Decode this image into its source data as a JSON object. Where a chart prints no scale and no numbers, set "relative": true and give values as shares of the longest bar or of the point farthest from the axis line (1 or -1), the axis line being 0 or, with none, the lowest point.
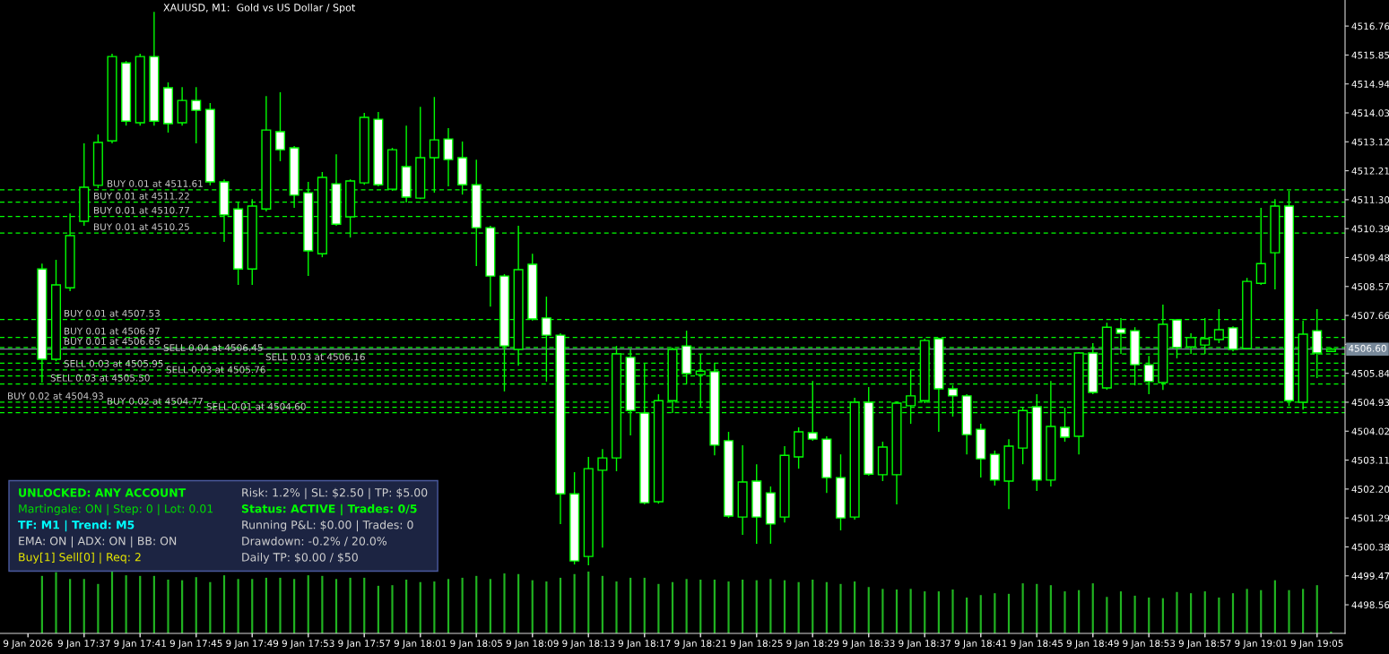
{
  "chart_data": [
    {
      "type": "candlestick",
      "title": "XAUUSD, M1:  Gold vs US Dollar / Spot",
      "tick_labels": "y",
      "x": [
        "2026-01-09T17:34",
        "2026-01-09T17:35",
        "2026-01-09T17:36",
        "2026-01-09T17:37",
        "2026-01-09T17:38",
        "2026-01-09T17:39",
        "2026-01-09T17:40",
        "2026-01-09T17:41",
        "2026-01-09T17:42",
        "2026-01-09T17:43",
        "2026-01-09T17:44",
        "2026-01-09T17:45",
        "2026-01-09T17:46",
        "2026-01-09T17:47",
        "2026-01-09T17:48",
        "2026-01-09T17:49",
        "2026-01-09T17:50",
        "2026-01-09T17:51",
        "2026-01-09T17:52",
        "2026-01-09T17:53",
        "2026-01-09T17:54",
        "2026-01-09T17:55",
        "2026-01-09T17:56",
        "2026-01-09T17:57",
        "2026-01-09T17:58",
        "2026-01-09T17:59",
        "2026-01-09T18:00",
        "2026-01-09T18:01",
        "2026-01-09T18:02",
        "2026-01-09T18:03",
        "2026-01-09T18:04",
        "2026-01-09T18:05",
        "2026-01-09T18:06",
        "2026-01-09T18:07",
        "2026-01-09T18:08",
        "2026-01-09T18:09",
        "2026-01-09T18:10",
        "2026-01-09T18:11",
        "2026-01-09T18:12",
        "2026-01-09T18:13",
        "2026-01-09T18:14",
        "2026-01-09T18:15",
        "2026-01-09T18:16",
        "2026-01-09T18:17",
        "2026-01-09T18:18",
        "2026-01-09T18:19",
        "2026-01-09T18:20",
        "2026-01-09T18:21",
        "2026-01-09T18:22",
        "2026-01-09T18:23",
        "2026-01-09T18:24",
        "2026-01-09T18:25",
        "2026-01-09T18:26",
        "2026-01-09T18:27",
        "2026-01-09T18:28",
        "2026-01-09T18:29",
        "2026-01-09T18:30",
        "2026-01-09T18:31",
        "2026-01-09T18:32",
        "2026-01-09T18:33",
        "2026-01-09T18:34",
        "2026-01-09T18:35",
        "2026-01-09T18:36",
        "2026-01-09T18:37",
        "2026-01-09T18:38",
        "2026-01-09T18:39",
        "2026-01-09T18:40",
        "2026-01-09T18:41",
        "2026-01-09T18:42",
        "2026-01-09T18:43",
        "2026-01-09T18:44",
        "2026-01-09T18:45",
        "2026-01-09T18:46",
        "2026-01-09T18:47",
        "2026-01-09T18:48",
        "2026-01-09T18:49",
        "2026-01-09T18:50",
        "2026-01-09T18:51",
        "2026-01-09T18:52",
        "2026-01-09T18:53",
        "2026-01-09T18:54",
        "2026-01-09T18:55",
        "2026-01-09T18:56",
        "2026-01-09T18:57",
        "2026-01-09T18:58",
        "2026-01-09T18:59",
        "2026-01-09T19:00",
        "2026-01-09T19:01",
        "2026-01-09T19:02",
        "2026-01-09T19:03",
        "2026-01-09T19:04",
        "2026-01-09T19:05",
        "2026-01-09T19:06"
      ],
      "ohlc": [
        [
          4509.12,
          4509.29,
          4505.55,
          4506.28
        ],
        [
          4506.28,
          4509.41,
          4506.22,
          4508.62
        ],
        [
          4508.53,
          4510.87,
          4508.42,
          4510.17
        ],
        [
          4510.62,
          4513.07,
          4510.48,
          4511.69
        ],
        [
          4511.75,
          4513.35,
          4511.66,
          4513.1
        ],
        [
          4513.15,
          4515.89,
          4513.07,
          4515.8
        ],
        [
          4515.6,
          4515.66,
          4513.63,
          4513.77
        ],
        [
          4513.72,
          4515.89,
          4513.63,
          4515.8
        ],
        [
          4515.8,
          4517.21,
          4513.63,
          4513.77
        ],
        [
          4514.82,
          4514.99,
          4513.41,
          4513.69
        ],
        [
          4513.72,
          4514.84,
          4513.63,
          4514.42
        ],
        [
          4514.42,
          4514.84,
          4513.07,
          4514.11
        ],
        [
          4514.14,
          4514.34,
          4511.75,
          4511.86
        ],
        [
          4511.86,
          4511.94,
          4509.97,
          4510.82
        ],
        [
          4511.01,
          4511.24,
          4508.62,
          4509.12
        ],
        [
          4509.12,
          4511.32,
          4508.62,
          4511.1
        ],
        [
          4511.01,
          4514.56,
          4510.93,
          4513.49
        ],
        [
          4513.44,
          4514.68,
          4512.51,
          4512.87
        ],
        [
          4512.93,
          4512.99,
          4511.04,
          4511.44
        ],
        [
          4511.52,
          4511.86,
          4508.9,
          4509.69
        ],
        [
          4509.6,
          4512.17,
          4509.49,
          4512.0
        ],
        [
          4511.8,
          4512.73,
          4510.48,
          4510.53
        ],
        [
          4510.76,
          4511.94,
          4510.11,
          4511.89
        ],
        [
          4511.83,
          4514.03,
          4511.77,
          4513.89
        ],
        [
          4513.83,
          4514.06,
          4511.72,
          4511.77
        ],
        [
          4511.63,
          4512.93,
          4511.58,
          4512.87
        ],
        [
          4512.34,
          4513.63,
          4511.21,
          4511.38
        ],
        [
          4511.35,
          4514.22,
          4511.32,
          4512.62
        ],
        [
          4512.62,
          4514.53,
          4511.52,
          4513.18
        ],
        [
          4513.21,
          4513.55,
          4511.72,
          4512.56
        ],
        [
          4512.62,
          4513.13,
          4511.46,
          4511.77
        ],
        [
          4511.77,
          4512.56,
          4509.21,
          4510.42
        ],
        [
          4510.42,
          4510.48,
          4507.94,
          4508.9
        ],
        [
          4508.9,
          4508.96,
          4505.27,
          4506.7
        ],
        [
          4506.59,
          4510.48,
          4506.08,
          4509.1
        ],
        [
          4509.27,
          4509.6,
          4507.49,
          4507.55
        ],
        [
          4507.58,
          4508.25,
          4505.58,
          4507.04
        ],
        [
          4507.04,
          4507.1,
          4501.1,
          4502.05
        ],
        [
          4502.05,
          4502.73,
          4499.83,
          4499.94
        ],
        [
          4500.08,
          4503.21,
          4499.8,
          4502.84
        ],
        [
          4502.79,
          4503.46,
          4500.36,
          4503.18
        ],
        [
          4503.18,
          4506.7,
          4502.76,
          4506.45
        ],
        [
          4506.34,
          4506.59,
          4503.89,
          4504.67
        ],
        [
          4504.59,
          4506.14,
          4501.72,
          4501.77
        ],
        [
          4501.8,
          4505.18,
          4501.74,
          4504.98
        ],
        [
          4504.98,
          4506.65,
          4504.59,
          4506.59
        ],
        [
          4506.7,
          4507.18,
          4505.52,
          4505.83
        ],
        [
          4505.8,
          4506.45,
          4504.76,
          4505.91
        ],
        [
          4505.89,
          4506.17,
          4503.26,
          4503.58
        ],
        [
          4503.72,
          4504.0,
          4501.29,
          4501.35
        ],
        [
          4501.32,
          4503.58,
          4500.76,
          4502.42
        ],
        [
          4502.45,
          4502.98,
          4500.48,
          4501.32
        ],
        [
          4502.08,
          4502.28,
          4500.48,
          4501.1
        ],
        [
          4501.32,
          4503.55,
          4501.15,
          4503.26
        ],
        [
          4503.21,
          4504.14,
          4502.84,
          4504.0
        ],
        [
          4503.97,
          4505.6,
          4503.72,
          4503.77
        ],
        [
          4503.77,
          4503.86,
          4502.08,
          4502.56
        ],
        [
          4502.56,
          4503.29,
          4500.9,
          4501.29
        ],
        [
          4501.32,
          4505.07,
          4501.24,
          4504.93
        ],
        [
          4504.93,
          4505.41,
          4502.62,
          4502.67
        ],
        [
          4502.65,
          4503.69,
          4502.45,
          4503.52
        ],
        [
          4502.65,
          4504.96,
          4501.72,
          4504.9
        ],
        [
          4504.82,
          4505.94,
          4504.25,
          4505.13
        ],
        [
          4504.98,
          4506.93,
          4504.9,
          4506.87
        ],
        [
          4506.93,
          4506.96,
          4504.0,
          4505.35
        ],
        [
          4505.35,
          4505.46,
          4504.48,
          4505.13
        ],
        [
          4505.13,
          4505.18,
          4503.29,
          4503.91
        ],
        [
          4504.08,
          4504.25,
          4502.56,
          4503.15
        ],
        [
          4503.29,
          4503.41,
          4502.31,
          4502.48
        ],
        [
          4502.45,
          4503.77,
          4501.57,
          4503.55
        ],
        [
          4503.49,
          4504.76,
          4502.98,
          4504.67
        ],
        [
          4504.79,
          4505.18,
          4502.14,
          4502.48
        ],
        [
          4502.48,
          4505.6,
          4502.28,
          4504.17
        ],
        [
          4504.14,
          4504.76,
          4503.69,
          4503.83
        ],
        [
          4503.86,
          4506.51,
          4503.29,
          4506.48
        ],
        [
          4506.48,
          4506.79,
          4505.18,
          4505.24
        ],
        [
          4505.38,
          4507.43,
          4505.32,
          4507.29
        ],
        [
          4507.24,
          4507.58,
          4506.45,
          4507.1
        ],
        [
          4507.18,
          4507.29,
          4505.46,
          4506.11
        ],
        [
          4506.11,
          4506.39,
          4505.18,
          4505.58
        ],
        [
          4505.55,
          4508.0,
          4505.32,
          4507.38
        ],
        [
          4507.52,
          4507.55,
          4506.31,
          4506.65
        ],
        [
          4506.67,
          4507.1,
          4506.45,
          4506.96
        ],
        [
          4506.73,
          4507.58,
          4506.45,
          4506.93
        ],
        [
          4506.9,
          4507.86,
          4506.79,
          4507.21
        ],
        [
          4507.27,
          4507.32,
          4506.53,
          4506.59
        ],
        [
          4506.62,
          4508.84,
          4506.59,
          4508.73
        ],
        [
          4508.67,
          4511.04,
          4508.62,
          4509.29
        ],
        [
          4509.63,
          4511.32,
          4508.48,
          4511.1
        ],
        [
          4511.1,
          4511.58,
          4504.81,
          4504.98
        ],
        [
          4504.93,
          4507.49,
          4504.7,
          4507.07
        ],
        [
          4507.18,
          4507.86,
          4505.69,
          4506.48
        ],
        [
          4506.53,
          4506.65,
          4506.51,
          4506.6
        ]
      ],
      "color": "#00ff00",
      "colors": [
        "#ffffff",
        "#000000",
        "#000000",
        "#000000",
        "#000000",
        "#000000",
        "#ffffff",
        "#000000",
        "#ffffff",
        "#ffffff",
        "#000000",
        "#ffffff",
        "#ffffff",
        "#ffffff",
        "#ffffff",
        "#000000",
        "#000000",
        "#ffffff",
        "#ffffff",
        "#ffffff",
        "#000000",
        "#ffffff",
        "#000000",
        "#000000",
        "#ffffff",
        "#000000",
        "#ffffff",
        "#000000",
        "#000000",
        "#ffffff",
        "#ffffff",
        "#ffffff",
        "#ffffff",
        "#ffffff",
        "#000000",
        "#ffffff",
        "#ffffff",
        "#ffffff",
        "#ffffff",
        "#000000",
        "#000000",
        "#000000",
        "#ffffff",
        "#ffffff",
        "#000000",
        "#000000",
        "#ffffff",
        "#000000",
        "#ffffff",
        "#ffffff",
        "#000000",
        "#ffffff",
        "#ffffff",
        "#000000",
        "#000000",
        "#ffffff",
        "#ffffff",
        "#ffffff",
        "#000000",
        "#ffffff",
        "#000000",
        "#000000",
        "#000000",
        "#000000",
        "#ffffff",
        "#ffffff",
        "#ffffff",
        "#ffffff",
        "#ffffff",
        "#000000",
        "#000000",
        "#ffffff",
        "#000000",
        "#ffffff",
        "#000000",
        "#ffffff",
        "#000000",
        "#ffffff",
        "#ffffff",
        "#ffffff",
        "#000000",
        "#ffffff",
        "#000000",
        "#000000",
        "#000000",
        "#ffffff",
        "#000000",
        "#000000",
        "#000000",
        "#ffffff",
        "#000000",
        "#ffffff",
        "#000000"
      ],
      "xlim": [
        "2026-01-09T17:31",
        "2026-01-09T19:07"
      ],
      "xticks": [
        {
          "value": "2026-01-09T17:33",
          "label": null
        },
        {
          "value": "2026-01-09T17:37",
          "label": null
        },
        {
          "value": "2026-01-09T17:41",
          "label": null
        },
        {
          "value": "2026-01-09T17:45",
          "label": null
        },
        {
          "value": "2026-01-09T17:49",
          "label": null
        },
        {
          "value": "2026-01-09T17:53",
          "label": null
        },
        {
          "value": "2026-01-09T17:57",
          "label": null
        },
        {
          "value": "2026-01-09T18:01",
          "label": null
        },
        {
          "value": "2026-01-09T18:05",
          "label": null
        },
        {
          "value": "2026-01-09T18:09",
          "label": null
        },
        {
          "value": "2026-01-09T18:13",
          "label": null
        },
        {
          "value": "2026-01-09T18:17",
          "label": null
        },
        {
          "value": "2026-01-09T18:21",
          "label": null
        },
        {
          "value": "2026-01-09T18:25",
          "label": null
        },
        {
          "value": "2026-01-09T18:29",
          "label": null
        },
        {
          "value": "2026-01-09T18:33",
          "label": null
        },
        {
          "value": "2026-01-09T18:37",
          "label": null
        },
        {
          "value": "2026-01-09T18:41",
          "label": null
        },
        {
          "value": "2026-01-09T18:45",
          "label": null
        },
        {
          "value": "2026-01-09T18:49",
          "label": null
        },
        {
          "value": "2026-01-09T18:53",
          "label": null
        },
        {
          "value": "2026-01-09T18:57",
          "label": null
        },
        {
          "value": "2026-01-09T19:01",
          "label": null
        },
        {
          "value": "2026-01-09T19:05",
          "label": null
        }
      ],
      "ylim": [
        4497.66,
        4517.58
      ],
      "yticks": [
        4498.56,
        4499.47,
        4500.38,
        4501.29,
        {
          "value": 4502.2,
          "label": "4502.20"
        },
        4503.11,
        4504.02,
        4504.93,
        4505.84,
        {
          "value": 4506.75,
          "label": null
        },
        4507.66,
        4508.57,
        4509.48,
        4510.39,
        {
          "value": 4511.3,
          "label": "4511.30"
        },
        4512.21,
        4513.12,
        4514.03,
        4514.94,
        4515.85,
        4516.76
      ],
      "ref_lines": [
        {
          "axis": "y",
          "value": 4511.61,
          "label": "BUY 0.01 at 4511.61",
          "color": "#00ff00",
          "line_style": "dashed"
        },
        {
          "axis": "y",
          "value": 4511.22,
          "label": "BUY 0.01 at 4511.22",
          "color": "#00ff00",
          "line_style": "dashed"
        },
        {
          "axis": "y",
          "value": 4510.77,
          "label": "BUY 0.01 at 4510.77",
          "color": "#00ff00",
          "line_style": "dashed"
        },
        {
          "axis": "y",
          "value": 4510.25,
          "label": "BUY 0.01 at 4510.25",
          "color": "#00ff00",
          "line_style": "dashed"
        },
        {
          "axis": "y",
          "value": 4507.53,
          "label": "BUY 0.01 at 4507.53",
          "color": "#00ff00",
          "line_style": "dashed"
        },
        {
          "axis": "y",
          "value": 4506.97,
          "label": "BUY 0.01 at 4506.97",
          "color": "#00ff00",
          "line_style": "dashed"
        },
        {
          "axis": "y",
          "value": 4506.65,
          "label": "BUY 0.01 at 4506.65",
          "color": "#00ff00",
          "line_style": "dashed"
        },
        {
          "axis": "y",
          "value": 4506.45,
          "label": "SELL 0.04 at 4506.45",
          "color": "#00ff00",
          "line_style": "dashed"
        },
        {
          "axis": "y",
          "value": 4506.16,
          "label": "SELL 0.03 at 4506.16",
          "color": "#00ff00",
          "line_style": "dashed"
        },
        {
          "axis": "y",
          "value": 4505.95,
          "label": "SELL 0.03 at 4505.95",
          "color": "#00ff00",
          "line_style": "dashed"
        },
        {
          "axis": "y",
          "value": 4505.76,
          "label": "SELL 0.03 at 4505.76",
          "color": "#00ff00",
          "line_style": "dashed"
        },
        {
          "axis": "y",
          "value": 4505.5,
          "label": "SELL 0.03 at 4505.50",
          "color": "#00ff00",
          "line_style": "dashed"
        },
        {
          "axis": "y",
          "value": 4504.93,
          "label": "BUY 0.02 at 4504.93",
          "color": "#00ff00",
          "line_style": "dashed"
        },
        {
          "axis": "y",
          "value": 4504.77,
          "label": "BUY 0.02 at 4504.77",
          "color": "#00ff00",
          "line_style": "dashed"
        },
        {
          "axis": "y",
          "value": 4504.6,
          "label": "SELL 0.01 at 4504.60",
          "color": "#00ff00",
          "line_style": "dashed"
        },
        {
          "axis": "y",
          "value": 4506.6,
          "label": "4506.60",
          "color": "#778899",
          "line_style": "solid"
        }
      ],
      "annotations": [
        "UNLOCKED: ANY ACCOUNT",
        "Martingale: ON | Step: 0 | Lot: 0.01",
        "TF: M1 | Trend: M5",
        "EMA: ON | ADX: ON | BB: ON",
        "Buy[1] Sell[0] | Req: 2",
        "Risk: 1.2% | SL: $2.50 | TP: $5.00",
        "Status: ACTIVE | Trades: 0/5",
        "Running P&L: $0.00 | Trades: 0",
        "Drawdown: -0.2% / 20.0%",
        "Daily TP: $0.00 / $50"
      ]
    },
    {
      "type": "bar",
      "relative": true,
      "color": "#20b420",
      "x": [
        "2026-01-09T17:34",
        "2026-01-09T17:35",
        "2026-01-09T17:36",
        "2026-01-09T17:37",
        "2026-01-09T17:38",
        "2026-01-09T17:39",
        "2026-01-09T17:40",
        "2026-01-09T17:41",
        "2026-01-09T17:42",
        "2026-01-09T17:43",
        "2026-01-09T17:44",
        "2026-01-09T17:45",
        "2026-01-09T17:46",
        "2026-01-09T17:47",
        "2026-01-09T17:48",
        "2026-01-09T17:49",
        "2026-01-09T17:50",
        "2026-01-09T17:51",
        "2026-01-09T17:52",
        "2026-01-09T17:53",
        "2026-01-09T17:54",
        "2026-01-09T17:55",
        "2026-01-09T17:56",
        "2026-01-09T17:57",
        "2026-01-09T17:58",
        "2026-01-09T17:59",
        "2026-01-09T18:00",
        "2026-01-09T18:01",
        "2026-01-09T18:02",
        "2026-01-09T18:03",
        "2026-01-09T18:04",
        "2026-01-09T18:05",
        "2026-01-09T18:06",
        "2026-01-09T18:07",
        "2026-01-09T18:08",
        "2026-01-09T18:09",
        "2026-01-09T18:10",
        "2026-01-09T18:11",
        "2026-01-09T18:12",
        "2026-01-09T18:13",
        "2026-01-09T18:14",
        "2026-01-09T18:15",
        "2026-01-09T18:16",
        "2026-01-09T18:17",
        "2026-01-09T18:18",
        "2026-01-09T18:19",
        "2026-01-09T18:20",
        "2026-01-09T18:21",
        "2026-01-09T18:22",
        "2026-01-09T18:23",
        "2026-01-09T18:24",
        "2026-01-09T18:25",
        "2026-01-09T18:26",
        "2026-01-09T18:27",
        "2026-01-09T18:28",
        "2026-01-09T18:29",
        "2026-01-09T18:30",
        "2026-01-09T18:31",
        "2026-01-09T18:32",
        "2026-01-09T18:33",
        "2026-01-09T18:34",
        "2026-01-09T18:35",
        "2026-01-09T18:36",
        "2026-01-09T18:37",
        "2026-01-09T18:38",
        "2026-01-09T18:39",
        "2026-01-09T18:40",
        "2026-01-09T18:41",
        "2026-01-09T18:42",
        "2026-01-09T18:43",
        "2026-01-09T18:44",
        "2026-01-09T18:45",
        "2026-01-09T18:46",
        "2026-01-09T18:47",
        "2026-01-09T18:48",
        "2026-01-09T18:49",
        "2026-01-09T18:50",
        "2026-01-09T18:51",
        "2026-01-09T18:52",
        "2026-01-09T18:53",
        "2026-01-09T18:54",
        "2026-01-09T18:55",
        "2026-01-09T18:56",
        "2026-01-09T18:57",
        "2026-01-09T18:58",
        "2026-01-09T18:59",
        "2026-01-09T19:00",
        "2026-01-09T19:01",
        "2026-01-09T19:02",
        "2026-01-09T19:03",
        "2026-01-09T19:04",
        "2026-01-09T19:05",
        "2026-01-09T19:06"
      ],
      "values": [
        0.93,
        0.99,
        0.88,
        0.88,
        0.8,
        1,
        0.94,
        0.93,
        0.93,
        0.87,
        0.86,
        0.91,
        0.83,
        0.94,
        0.88,
        0.88,
        0.9,
        0.9,
        0.88,
        0.94,
        0.93,
        0.88,
        0.9,
        0.9,
        0.77,
        0.78,
        0.87,
        0.83,
        0.84,
        0.88,
        0.9,
        0.93,
        0.88,
        0.97,
        0.96,
        0.86,
        0.84,
        0.9,
        0.96,
        1,
        0.93,
        0.84,
        0.9,
        0.9,
        0.8,
        0.83,
        0.88,
        0.87,
        0.87,
        0.84,
        0.87,
        0.86,
        0.88,
        0.86,
        0.83,
        0.87,
        0.83,
        0.8,
        0.84,
        0.75,
        0.72,
        0.71,
        0.72,
        0.68,
        0.68,
        0.71,
        0.58,
        0.62,
        0.65,
        0.64,
        0.81,
        0.8,
        0.78,
        0.68,
        0.7,
        0.81,
        0.59,
        0.68,
        0.61,
        0.58,
        0.57,
        0.67,
        0.65,
        0.68,
        0.58,
        0.65,
        0.72,
        0.7,
        0.86,
        0.7,
        0.72,
        0.78,
        0.03
      ],
      "xlim": [
        "2026-01-09T17:31",
        "2026-01-09T19:07"
      ],
      "xticks": [
        {
          "value": "2026-01-09T17:33",
          "label": "9 Jan 2026"
        },
        {
          "value": "2026-01-09T17:37",
          "label": "9 Jan 17:37"
        },
        {
          "value": "2026-01-09T17:41",
          "label": "9 Jan 17:41"
        },
        {
          "value": "2026-01-09T17:45",
          "label": "9 Jan 17:45"
        },
        {
          "value": "2026-01-09T17:49",
          "label": "9 Jan 17:49"
        },
        {
          "value": "2026-01-09T17:53",
          "label": "9 Jan 17:53"
        },
        {
          "value": "2026-01-09T17:57",
          "label": "9 Jan 17:57"
        },
        {
          "value": "2026-01-09T18:01",
          "label": "9 Jan 18:01"
        },
        {
          "value": "2026-01-09T18:05",
          "label": "9 Jan 18:05"
        },
        {
          "value": "2026-01-09T18:09",
          "label": "9 Jan 18:09"
        },
        {
          "value": "2026-01-09T18:13",
          "label": "9 Jan 18:13"
        },
        {
          "value": "2026-01-09T18:17",
          "label": "9 Jan 18:17"
        },
        {
          "value": "2026-01-09T18:21",
          "label": "9 Jan 18:21"
        },
        {
          "value": "2026-01-09T18:25",
          "label": "9 Jan 18:25"
        },
        {
          "value": "2026-01-09T18:29",
          "label": "9 Jan 18:29"
        },
        {
          "value": "2026-01-09T18:33",
          "label": "9 Jan 18:33"
        },
        {
          "value": "2026-01-09T18:37",
          "label": "9 Jan 18:37"
        },
        {
          "value": "2026-01-09T18:41",
          "label": "9 Jan 18:41"
        },
        {
          "value": "2026-01-09T18:45",
          "label": "9 Jan 18:45"
        },
        {
          "value": "2026-01-09T18:49",
          "label": "9 Jan 18:49"
        },
        {
          "value": "2026-01-09T18:53",
          "label": "9 Jan 18:53"
        },
        {
          "value": "2026-01-09T18:57",
          "label": "9 Jan 18:57"
        },
        {
          "value": "2026-01-09T19:01",
          "label": "9 Jan 19:01"
        },
        {
          "value": "2026-01-09T19:05",
          "label": "9 Jan 19:05"
        }
      ]
    }
  ]
}
